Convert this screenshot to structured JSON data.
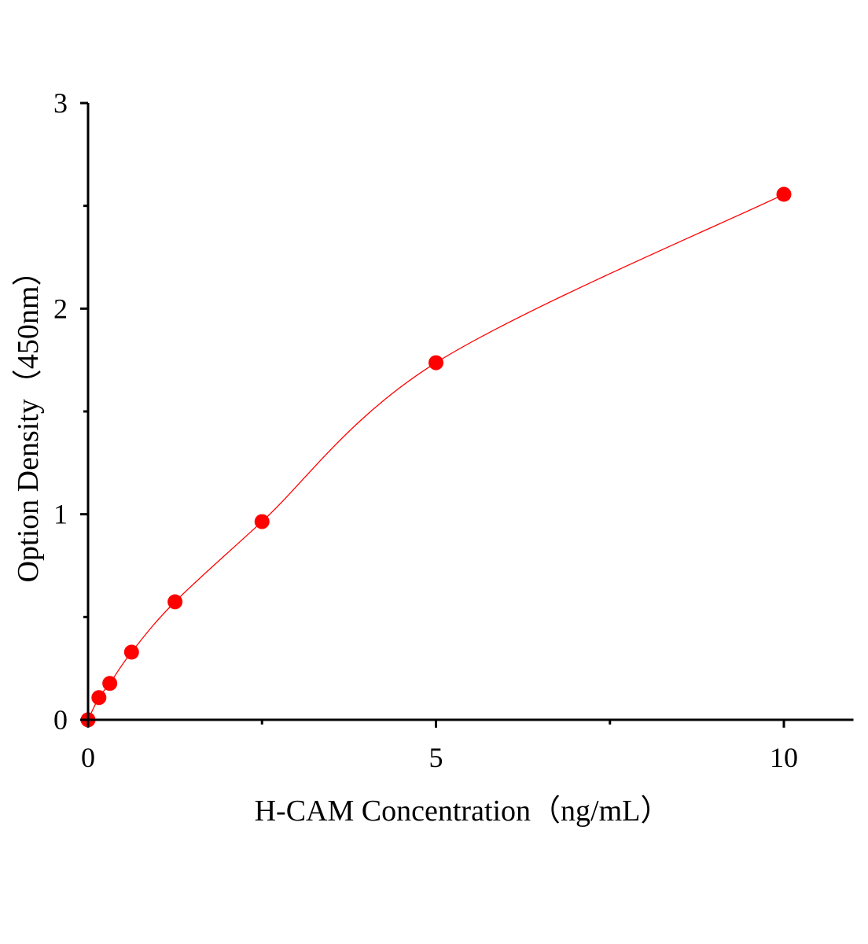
{
  "chart_data": {
    "type": "scatter",
    "title": "",
    "xlabel": "H-CAM Concentration（ng/mL）",
    "ylabel": "Option Density（450nm）",
    "xlim": [
      0,
      11
    ],
    "ylim": [
      0,
      3
    ],
    "x_ticks": [
      0,
      5,
      10
    ],
    "x_tick_labels": [
      "0",
      "5",
      "10"
    ],
    "x_minor_ticks": [
      2.5,
      7.5
    ],
    "y_ticks": [
      0,
      1,
      2,
      3
    ],
    "y_tick_labels": [
      "0",
      "1",
      "2",
      "3"
    ],
    "y_minor_ticks": [
      0.5,
      1.5,
      2.5
    ],
    "grid": false,
    "legend": "none",
    "color": "#ff0000",
    "fit_line": true,
    "series": [
      {
        "x": [
          0,
          0.156,
          0.3125,
          0.625,
          1.25,
          2.5,
          5,
          10
        ],
        "y": [
          0,
          0.108,
          0.177,
          0.329,
          0.574,
          0.964,
          1.737,
          2.556
        ]
      }
    ]
  }
}
